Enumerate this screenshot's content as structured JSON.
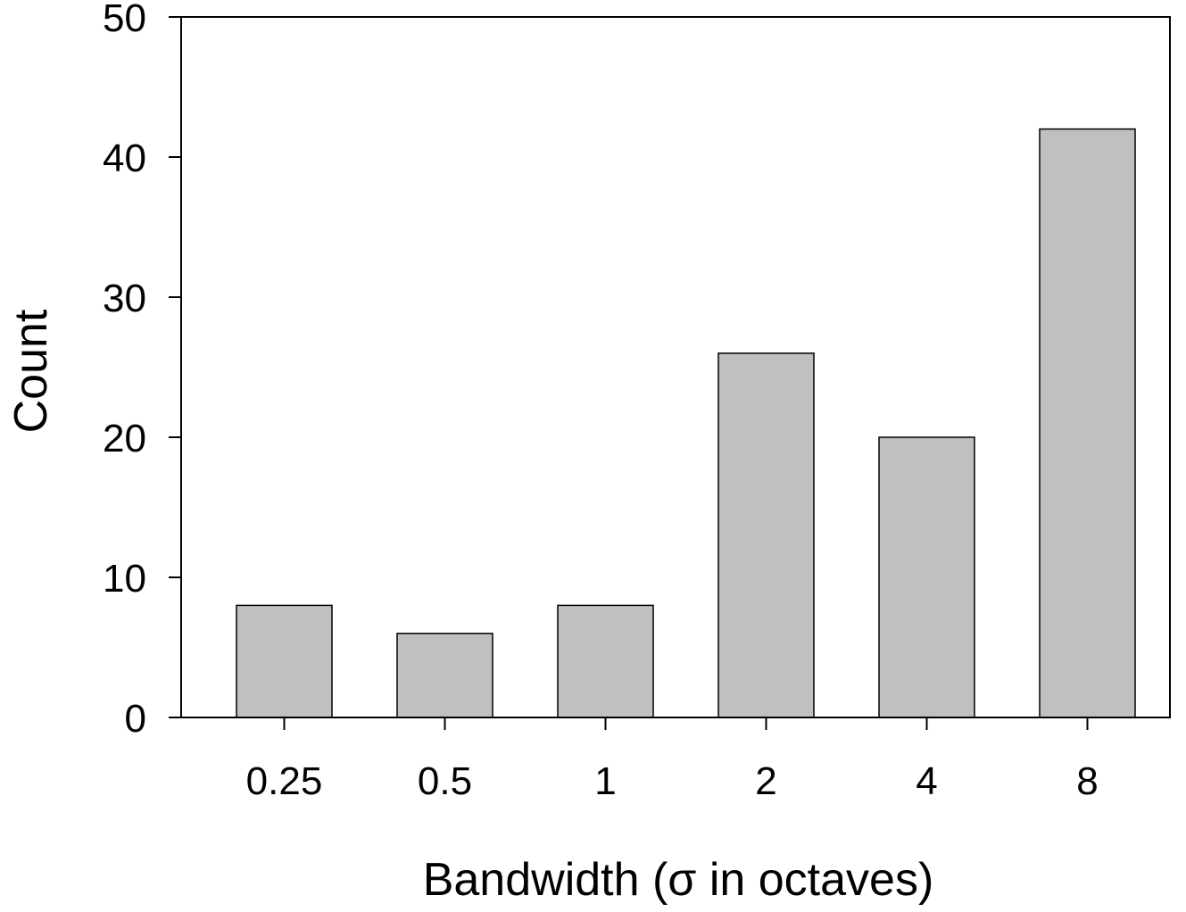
{
  "chart_data": {
    "type": "bar",
    "categories": [
      "0.25",
      "0.5",
      "1",
      "2",
      "4",
      "8"
    ],
    "values": [
      8,
      6,
      8,
      26,
      20,
      42
    ],
    "xlabel": "Bandwidth (σ in octaves)",
    "ylabel": "Count",
    "ylim": [
      0,
      50
    ],
    "yticks": [
      "0",
      "10",
      "20",
      "30",
      "40",
      "50"
    ],
    "grid": false,
    "legend": "none",
    "colors": {
      "bar_fill": "#c0c0c0",
      "bar_stroke": "#000000",
      "axis": "#000000"
    }
  }
}
